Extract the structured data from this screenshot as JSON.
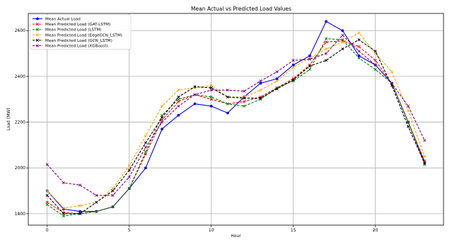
{
  "chart_data": {
    "type": "line",
    "title": "Mean Actual vs Predicted Load Values",
    "xlabel": "Hour",
    "ylabel": "Load (MW)",
    "xlim": [
      -1.15,
      24.15
    ],
    "ylim": [
      1750,
      2675
    ],
    "xticks": [
      0,
      5,
      10,
      15,
      20
    ],
    "yticks": [
      1800,
      2000,
      2200,
      2400,
      2600
    ],
    "grid": true,
    "legend_position": "top-left",
    "x": [
      0,
      1,
      2,
      3,
      4,
      5,
      6,
      7,
      8,
      9,
      10,
      11,
      12,
      13,
      14,
      15,
      16,
      17,
      18,
      19,
      20,
      21,
      22,
      23
    ],
    "series": [
      {
        "name": "Mean Actual Load",
        "color": "#0000ff",
        "style": "solid",
        "marker": "circle",
        "values": [
          1900,
          1820,
          1810,
          1810,
          1830,
          1910,
          2000,
          2170,
          2230,
          2280,
          2270,
          2240,
          2310,
          2370,
          2390,
          2450,
          2490,
          2640,
          2600,
          2490,
          2450,
          2370,
          2200,
          2025
        ]
      },
      {
        "name": "Mean Predicted Load (GAT-LSTM)",
        "color": "#ff0000",
        "style": "dashed",
        "marker": "x",
        "values": [
          1850,
          1805,
          1800,
          1810,
          1830,
          1910,
          2060,
          2210,
          2290,
          2320,
          2300,
          2280,
          2290,
          2310,
          2350,
          2390,
          2450,
          2550,
          2555,
          2530,
          2470,
          2370,
          2200,
          2030
        ]
      },
      {
        "name": "Mean Predicted Load (LSTM)",
        "color": "#008000",
        "style": "dashed",
        "marker": "x",
        "values": [
          1840,
          1790,
          1800,
          1810,
          1830,
          1910,
          2070,
          2230,
          2300,
          2320,
          2310,
          2280,
          2270,
          2300,
          2350,
          2380,
          2430,
          2565,
          2560,
          2480,
          2430,
          2370,
          2200,
          2015
        ]
      },
      {
        "name": "Mean Predicted Load (EdgeGCN_LSTM)",
        "color": "#ffa500",
        "style": "dashed",
        "marker": "x",
        "values": [
          1900,
          1825,
          1835,
          1850,
          1910,
          2010,
          2140,
          2270,
          2340,
          2350,
          2360,
          2310,
          2310,
          2340,
          2380,
          2440,
          2480,
          2520,
          2550,
          2590,
          2500,
          2420,
          2250,
          2050
        ]
      },
      {
        "name": "Mean Predicted Load (GCN_LSTM)",
        "color": "#000000",
        "style": "dashed",
        "marker": "x",
        "values": [
          1880,
          1800,
          1800,
          1850,
          1900,
          1990,
          2110,
          2220,
          2310,
          2355,
          2350,
          2310,
          2305,
          2305,
          2345,
          2385,
          2445,
          2470,
          2520,
          2560,
          2510,
          2360,
          2180,
          2020
        ]
      },
      {
        "name": "Mean Predicted Load (XGBoost)",
        "color": "#800080",
        "style": "dashed",
        "marker": "x",
        "values": [
          2015,
          1935,
          1925,
          1880,
          1880,
          1960,
          2090,
          2200,
          2270,
          2320,
          2340,
          2340,
          2335,
          2380,
          2420,
          2470,
          2475,
          2500,
          2580,
          2510,
          2450,
          2370,
          2270,
          2120
        ]
      }
    ]
  }
}
